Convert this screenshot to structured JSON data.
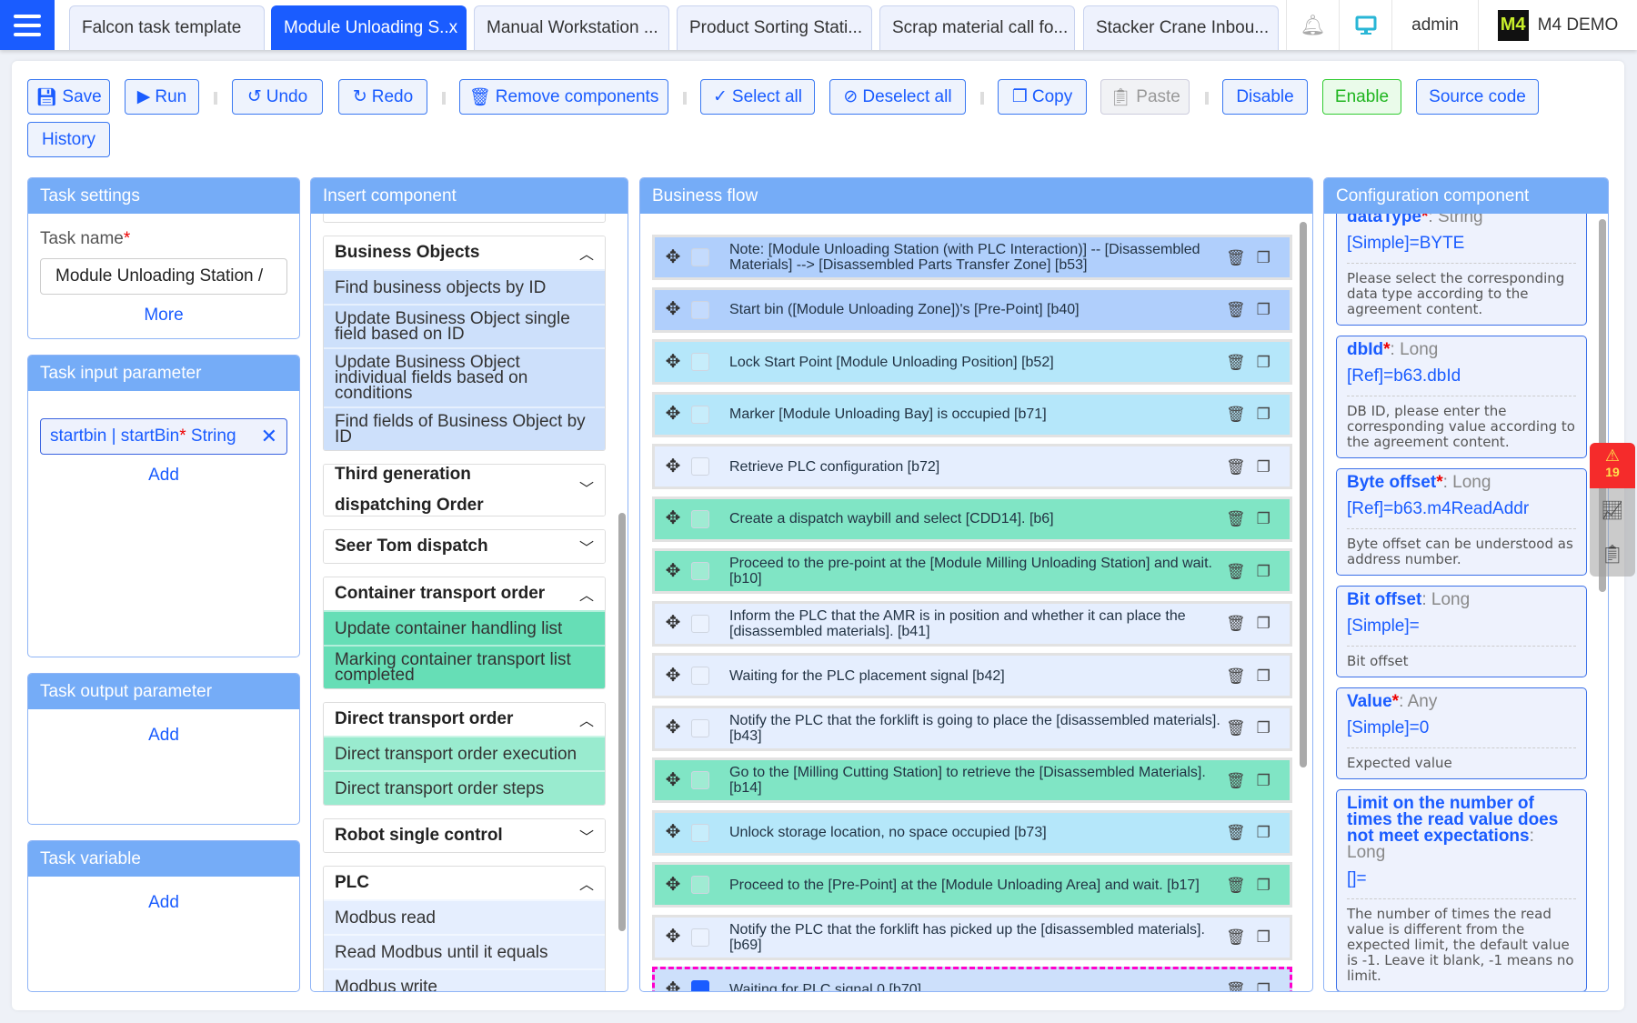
{
  "tabs": [
    {
      "label": "Falcon task template",
      "active": false
    },
    {
      "label": "Module Unloading S..x",
      "active": true
    },
    {
      "label": "Manual Workstation ...",
      "active": false
    },
    {
      "label": "Product Sorting Stati...",
      "active": false
    },
    {
      "label": "Scrap material call fo...",
      "active": false
    },
    {
      "label": "Stacker Crane Inbou...",
      "active": false
    }
  ],
  "header": {
    "bell_icon": "bell-icon",
    "monitor_icon": "monitor-icon",
    "user": "admin",
    "brand": "M4 DEMO",
    "logo_text": "M4"
  },
  "toolbar": {
    "save": "Save",
    "run": "Run",
    "undo": "Undo",
    "redo": "Redo",
    "remove": "Remove components",
    "select_all": "Select all",
    "deselect_all": "Deselect all",
    "copy": "Copy",
    "paste": "Paste",
    "disable": "Disable",
    "enable": "Enable",
    "source": "Source code",
    "history": "History"
  },
  "task_settings": {
    "title": "Task settings",
    "name_label": "Task name",
    "required": "*",
    "name_value": "Module Unloading Station /",
    "more": "More"
  },
  "task_input": {
    "title": "Task input parameter",
    "param": "startbin | startBin",
    "param_req": "*",
    "param_type": "String",
    "remove": "✕",
    "add": "Add"
  },
  "task_output": {
    "title": "Task output parameter",
    "add": "Add"
  },
  "task_variable": {
    "title": "Task variable",
    "add": "Add"
  },
  "insert": {
    "title": "Insert component",
    "groups": [
      {
        "name": "Business Objects",
        "expanded": true,
        "color": "#cde0fb",
        "items": [
          "Find business objects by ID",
          "Update Business Object single field based on ID",
          "Update Business Object individual fields based on conditions",
          "Find fields of Business Object by ID"
        ]
      },
      {
        "name": "Third generation dispatching Order",
        "expanded": false,
        "items": []
      },
      {
        "name": "Seer Tom dispatch",
        "expanded": false,
        "items": []
      },
      {
        "name": "Container transport order",
        "expanded": true,
        "color": "#66deb6",
        "items": [
          "Update container handling list",
          "Marking container transport list completed"
        ]
      },
      {
        "name": "Direct transport order",
        "expanded": true,
        "color": "#99ebcf",
        "items": [
          "Direct transport order execution",
          "Direct transport order steps"
        ]
      },
      {
        "name": "Robot single control",
        "expanded": false,
        "items": []
      },
      {
        "name": "PLC",
        "expanded": true,
        "color": "#e5eefe",
        "items": [
          "Modbus read",
          "Read Modbus until it equals",
          "Modbus write"
        ]
      }
    ]
  },
  "flow": {
    "title": "Business flow",
    "rows": [
      {
        "text": "Note: [Module Unloading Station (with PLC Interaction)] -- [Disassembled Materials] --> [Disassembled Parts Transfer Zone] [b53]",
        "color": "#b0cffc"
      },
      {
        "text": "Start bin ([Module Unloading Zone])'s [Pre-Point] [b40]",
        "color": "#b0cffc"
      },
      {
        "text": "Lock Start Point [Module Unloading Position] [b52]",
        "color": "#b5e7fa"
      },
      {
        "text": "Marker [Module Unloading Bay] is occupied [b71]",
        "color": "#b5e7fa"
      },
      {
        "text": "Retrieve PLC configuration [b72]",
        "color": "#e5eefe"
      },
      {
        "text": "Create a dispatch waybill and select [CDD14]. [b6]",
        "color": "#80e5c5"
      },
      {
        "text": "Proceed to the pre-point at the [Module Milling Unloading Station] and wait. [b10]",
        "color": "#80e5c5"
      },
      {
        "text": "Inform the PLC that the AMR is in position and whether it can place the [disassembled materials]. [b41]",
        "color": "#e5eefe"
      },
      {
        "text": "Waiting for the PLC placement signal [b42]",
        "color": "#e5eefe"
      },
      {
        "text": "Notify the PLC that the forklift is going to place the [disassembled materials]. [b43]",
        "color": "#e5eefe"
      },
      {
        "text": "Go to the [Milling Cutting Station] to retrieve the [Disassembled Materials]. [b14]",
        "color": "#80e5c5"
      },
      {
        "text": "Unlock storage location, no space occupied [b73]",
        "color": "#b5e7fa"
      },
      {
        "text": "Proceed to the [Pre-Point] at the [Module Unloading Area] and wait. [b17]",
        "color": "#80e5c5"
      },
      {
        "text": "Notify the PLC that the forklift has picked up the [disassembled materials]. [b69]",
        "color": "#e5eefe"
      },
      {
        "text": "Waiting for PLC signal 0 [b70]",
        "color": "#cde0fb",
        "selected": true
      }
    ]
  },
  "config": {
    "title": "Configuration component",
    "fields": [
      {
        "name": "dataType",
        "required": true,
        "type": "String",
        "value": "[Simple]=BYTE",
        "desc": "Please select the corresponding data type according to the agreement content."
      },
      {
        "name": "dbId",
        "required": true,
        "type": "Long",
        "value": "[Ref]=b63.dbId",
        "desc": "DB ID, please enter the corresponding value according to the agreement content."
      },
      {
        "name": "Byte offset",
        "required": true,
        "type": "Long",
        "value": "[Ref]=b63.m4ReadAddr",
        "desc": "Byte offset can be understood as address number."
      },
      {
        "name": "Bit offset",
        "required": false,
        "type": "Long",
        "value": "[Simple]=",
        "desc": "Bit offset"
      },
      {
        "name": "Value",
        "required": true,
        "type": "Any",
        "value": "[Simple]=0",
        "desc": "Expected value"
      },
      {
        "name": "Limit on the number of times the read value does not meet expectations",
        "required": false,
        "type": "Long",
        "value": "[]=",
        "desc": "The number of times the read value is different from the expected limit, the default value is -1. Leave it blank, -1 means no limit."
      }
    ]
  },
  "float": {
    "alarm_count": "19"
  }
}
